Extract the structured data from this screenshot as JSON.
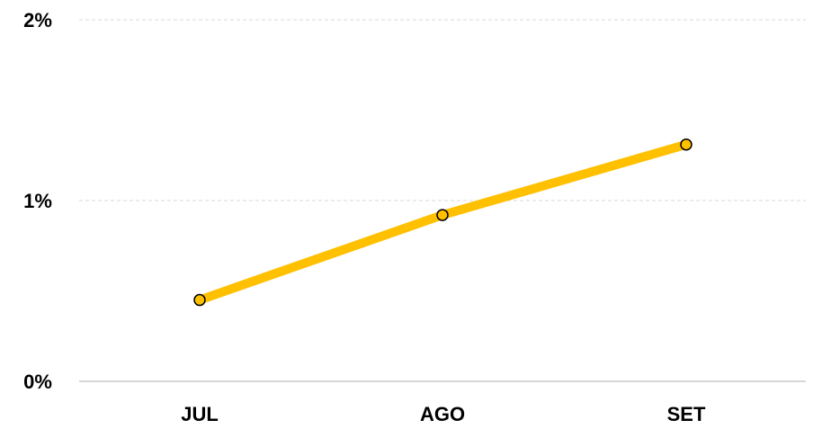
{
  "chart_data": {
    "type": "line",
    "categories": [
      "JUL",
      "AGO",
      "SET"
    ],
    "series": [
      {
        "values": [
          0.45,
          0.92,
          1.31
        ]
      }
    ],
    "ylim": [
      0,
      2
    ],
    "y_ticks": [
      "0%",
      "1%",
      "2%"
    ],
    "y_tick_values": [
      0,
      1,
      2
    ],
    "grid": true,
    "line_color": "#FFC000",
    "marker_color": "#FFC000",
    "marker_edge_color": "#000000",
    "grid_color": "#d9d9d9",
    "axis_color": "#bfbfbf"
  }
}
